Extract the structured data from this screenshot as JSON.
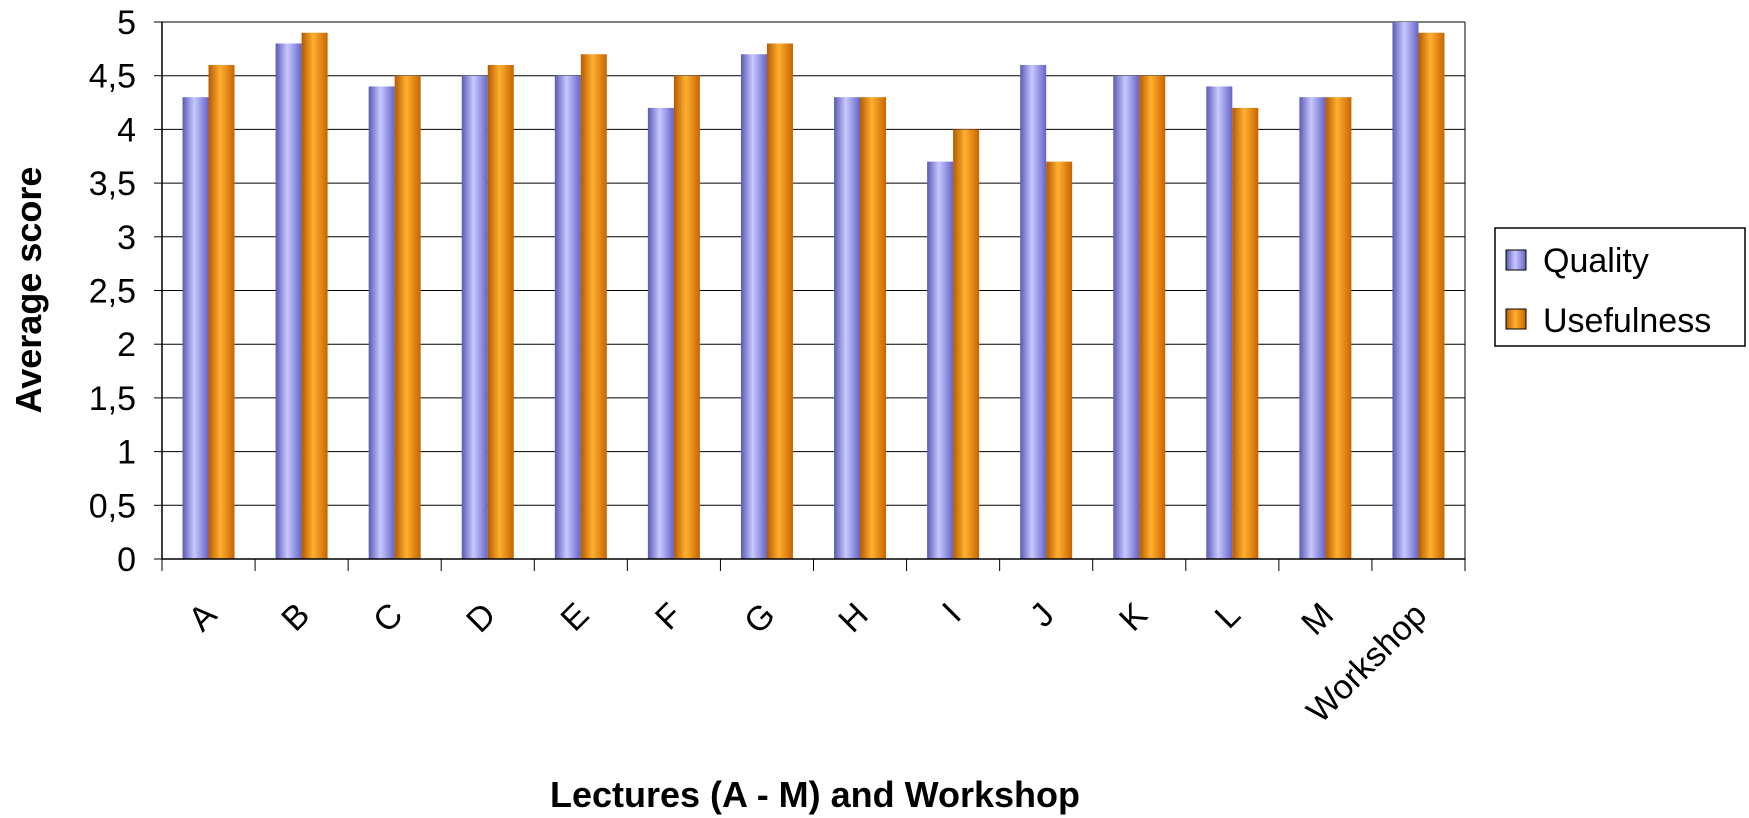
{
  "chart_data": {
    "type": "bar",
    "title": "",
    "xlabel": "Lectures (A - M) and Workshop",
    "ylabel": "Average score",
    "ylim": [
      0,
      5
    ],
    "yticks": [
      "0",
      "0,5",
      "1",
      "1,5",
      "2",
      "2,5",
      "3",
      "3,5",
      "4",
      "4,5",
      "5"
    ],
    "categories": [
      "A",
      "B",
      "C",
      "D",
      "E",
      "F",
      "G",
      "H",
      "I",
      "J",
      "K",
      "L",
      "M",
      "Workshop"
    ],
    "series": [
      {
        "name": "Quality",
        "color": "#8c8ce6",
        "values": [
          4.3,
          4.8,
          4.4,
          4.5,
          4.5,
          4.2,
          4.7,
          4.3,
          3.7,
          4.6,
          4.5,
          4.4,
          4.3,
          5.0
        ]
      },
      {
        "name": "Usefulness",
        "color": "#f08c00",
        "values": [
          4.6,
          4.9,
          4.5,
          4.6,
          4.7,
          4.5,
          4.8,
          4.3,
          4.0,
          3.7,
          4.5,
          4.2,
          4.3,
          4.9
        ]
      }
    ],
    "grid": true,
    "legend": "right"
  }
}
